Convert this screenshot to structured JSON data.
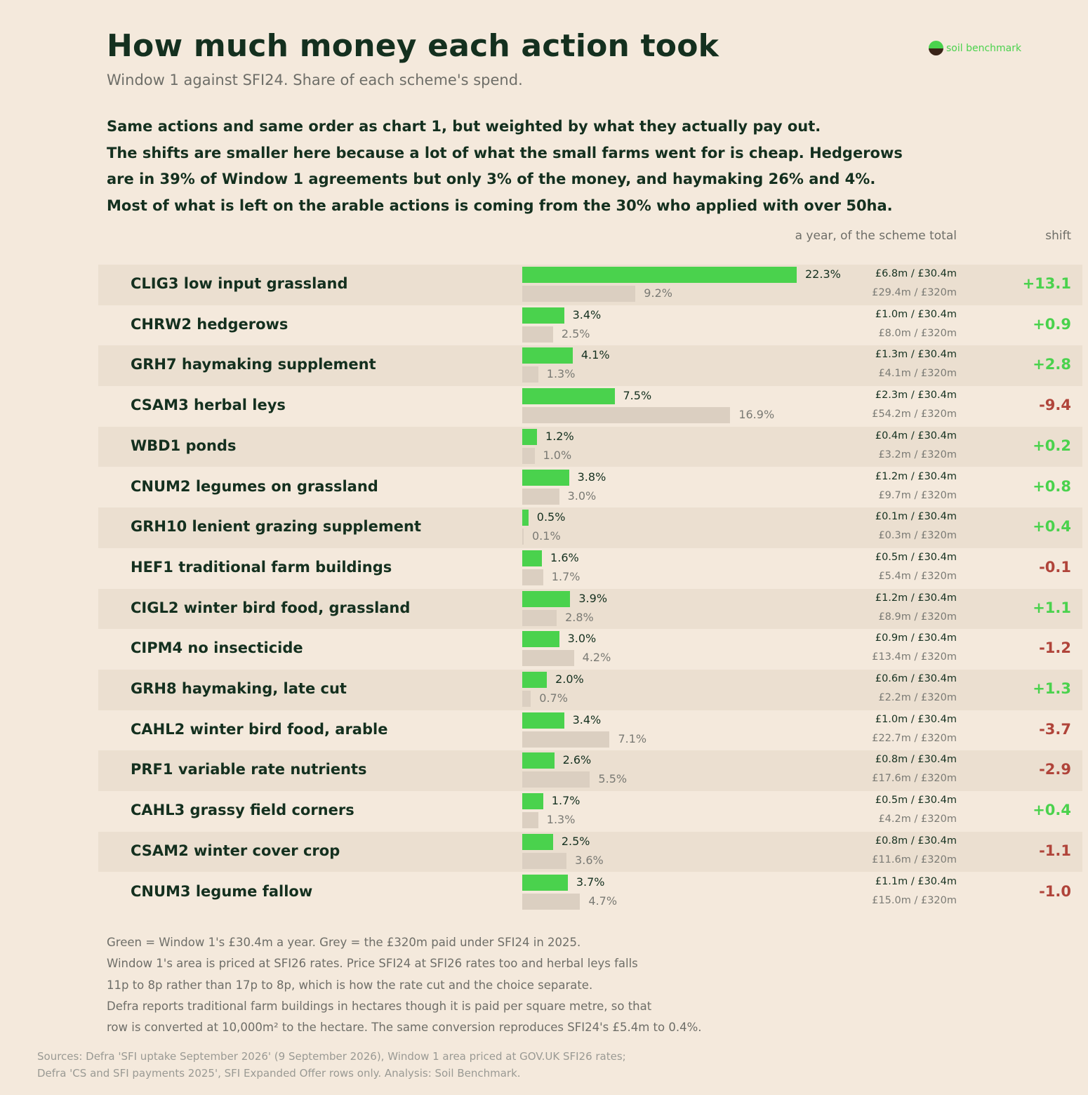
{
  "title": "How much money each action took",
  "subtitle": "Window 1 against SFI24. Share of each scheme's spend.",
  "brand": {
    "name": "soil benchmark",
    "icon": "soil-globe-icon"
  },
  "intro": [
    "Same actions and same order as chart 1, but weighted by what they actually pay out.",
    "The shifts are smaller here because a lot of what the small farms went for is cheap. Hedgerows",
    "are in 39% of Window 1 agreements but only 3% of the money, and haymaking 26% and 4%.",
    "Most of what is left on the arable actions is coming from the 30% who applied with over 50ha."
  ],
  "column_headers": {
    "money": "a year, of the scheme total",
    "shift": "shift"
  },
  "colors": {
    "window1": "#4ad24d",
    "sfi24": "#dbcfc1",
    "positive": "#4ad24d",
    "negative": "#b0443a"
  },
  "chart_data": {
    "type": "bar",
    "orientation": "horizontal",
    "value_max": 22.3,
    "series": [
      {
        "name": "Window 1",
        "key": "w1"
      },
      {
        "name": "SFI24",
        "key": "sfi"
      }
    ],
    "rows": [
      {
        "label": "CLIG3 low input grassland",
        "w1": 22.3,
        "sfi": 9.2,
        "w1_label": "22.3%",
        "sfi_label": "9.2%",
        "w1_money": "£6.8m / £30.4m",
        "sfi_money": "£29.4m / £320m",
        "shift": "+13.1"
      },
      {
        "label": "CHRW2 hedgerows",
        "w1": 3.4,
        "sfi": 2.5,
        "w1_label": "3.4%",
        "sfi_label": "2.5%",
        "w1_money": "£1.0m / £30.4m",
        "sfi_money": "£8.0m / £320m",
        "shift": "+0.9"
      },
      {
        "label": "GRH7 haymaking supplement",
        "w1": 4.1,
        "sfi": 1.3,
        "w1_label": "4.1%",
        "sfi_label": "1.3%",
        "w1_money": "£1.3m / £30.4m",
        "sfi_money": "£4.1m / £320m",
        "shift": "+2.8"
      },
      {
        "label": "CSAM3 herbal leys",
        "w1": 7.5,
        "sfi": 16.9,
        "w1_label": "7.5%",
        "sfi_label": "16.9%",
        "w1_money": "£2.3m / £30.4m",
        "sfi_money": "£54.2m / £320m",
        "shift": "-9.4"
      },
      {
        "label": "WBD1 ponds",
        "w1": 1.2,
        "sfi": 1.0,
        "w1_label": "1.2%",
        "sfi_label": "1.0%",
        "w1_money": "£0.4m / £30.4m",
        "sfi_money": "£3.2m / £320m",
        "shift": "+0.2"
      },
      {
        "label": "CNUM2 legumes on grassland",
        "w1": 3.8,
        "sfi": 3.0,
        "w1_label": "3.8%",
        "sfi_label": "3.0%",
        "w1_money": "£1.2m / £30.4m",
        "sfi_money": "£9.7m / £320m",
        "shift": "+0.8"
      },
      {
        "label": "GRH10 lenient grazing supplement",
        "w1": 0.5,
        "sfi": 0.1,
        "w1_label": "0.5%",
        "sfi_label": "0.1%",
        "w1_money": "£0.1m / £30.4m",
        "sfi_money": "£0.3m / £320m",
        "shift": "+0.4"
      },
      {
        "label": "HEF1 traditional farm buildings",
        "w1": 1.6,
        "sfi": 1.7,
        "w1_label": "1.6%",
        "sfi_label": "1.7%",
        "w1_money": "£0.5m / £30.4m",
        "sfi_money": "£5.4m / £320m",
        "shift": "-0.1"
      },
      {
        "label": "CIGL2 winter bird food, grassland",
        "w1": 3.9,
        "sfi": 2.8,
        "w1_label": "3.9%",
        "sfi_label": "2.8%",
        "w1_money": "£1.2m / £30.4m",
        "sfi_money": "£8.9m / £320m",
        "shift": "+1.1"
      },
      {
        "label": "CIPM4 no insecticide",
        "w1": 3.0,
        "sfi": 4.2,
        "w1_label": "3.0%",
        "sfi_label": "4.2%",
        "w1_money": "£0.9m / £30.4m",
        "sfi_money": "£13.4m / £320m",
        "shift": "-1.2"
      },
      {
        "label": "GRH8 haymaking, late cut",
        "w1": 2.0,
        "sfi": 0.7,
        "w1_label": "2.0%",
        "sfi_label": "0.7%",
        "w1_money": "£0.6m / £30.4m",
        "sfi_money": "£2.2m / £320m",
        "shift": "+1.3"
      },
      {
        "label": "CAHL2 winter bird food, arable",
        "w1": 3.4,
        "sfi": 7.1,
        "w1_label": "3.4%",
        "sfi_label": "7.1%",
        "w1_money": "£1.0m / £30.4m",
        "sfi_money": "£22.7m / £320m",
        "shift": "-3.7"
      },
      {
        "label": "PRF1 variable rate nutrients",
        "w1": 2.6,
        "sfi": 5.5,
        "w1_label": "2.6%",
        "sfi_label": "5.5%",
        "w1_money": "£0.8m / £30.4m",
        "sfi_money": "£17.6m / £320m",
        "shift": "-2.9"
      },
      {
        "label": "CAHL3 grassy field corners",
        "w1": 1.7,
        "sfi": 1.3,
        "w1_label": "1.7%",
        "sfi_label": "1.3%",
        "w1_money": "£0.5m / £30.4m",
        "sfi_money": "£4.2m / £320m",
        "shift": "+0.4"
      },
      {
        "label": "CSAM2 winter cover crop",
        "w1": 2.5,
        "sfi": 3.6,
        "w1_label": "2.5%",
        "sfi_label": "3.6%",
        "w1_money": "£0.8m / £30.4m",
        "sfi_money": "£11.6m / £320m",
        "shift": "-1.1"
      },
      {
        "label": "CNUM3 legume fallow",
        "w1": 3.7,
        "sfi": 4.7,
        "w1_label": "3.7%",
        "sfi_label": "4.7%",
        "w1_money": "£1.1m / £30.4m",
        "sfi_money": "£15.0m / £320m",
        "shift": "-1.0"
      }
    ]
  },
  "notes": [
    "Green = Window 1's £30.4m a year.   Grey = the £320m paid under SFI24 in 2025.",
    "Window 1's area is priced at SFI26 rates. Price SFI24 at SFI26 rates too and herbal leys falls",
    "11p to 8p rather than 17p to 8p, which is how the rate cut and the choice separate.",
    "Defra reports traditional farm buildings in hectares though it is paid per square metre, so that",
    "row is converted at 10,000m² to the hectare. The same conversion reproduces SFI24's £5.4m to 0.4%."
  ],
  "sources": [
    "Sources: Defra 'SFI uptake September 2026' (9 September 2026), Window 1 area priced at GOV.UK SFI26 rates;",
    "Defra 'CS and SFI payments 2025', SFI Expanded Offer rows only. Analysis: Soil Benchmark."
  ]
}
